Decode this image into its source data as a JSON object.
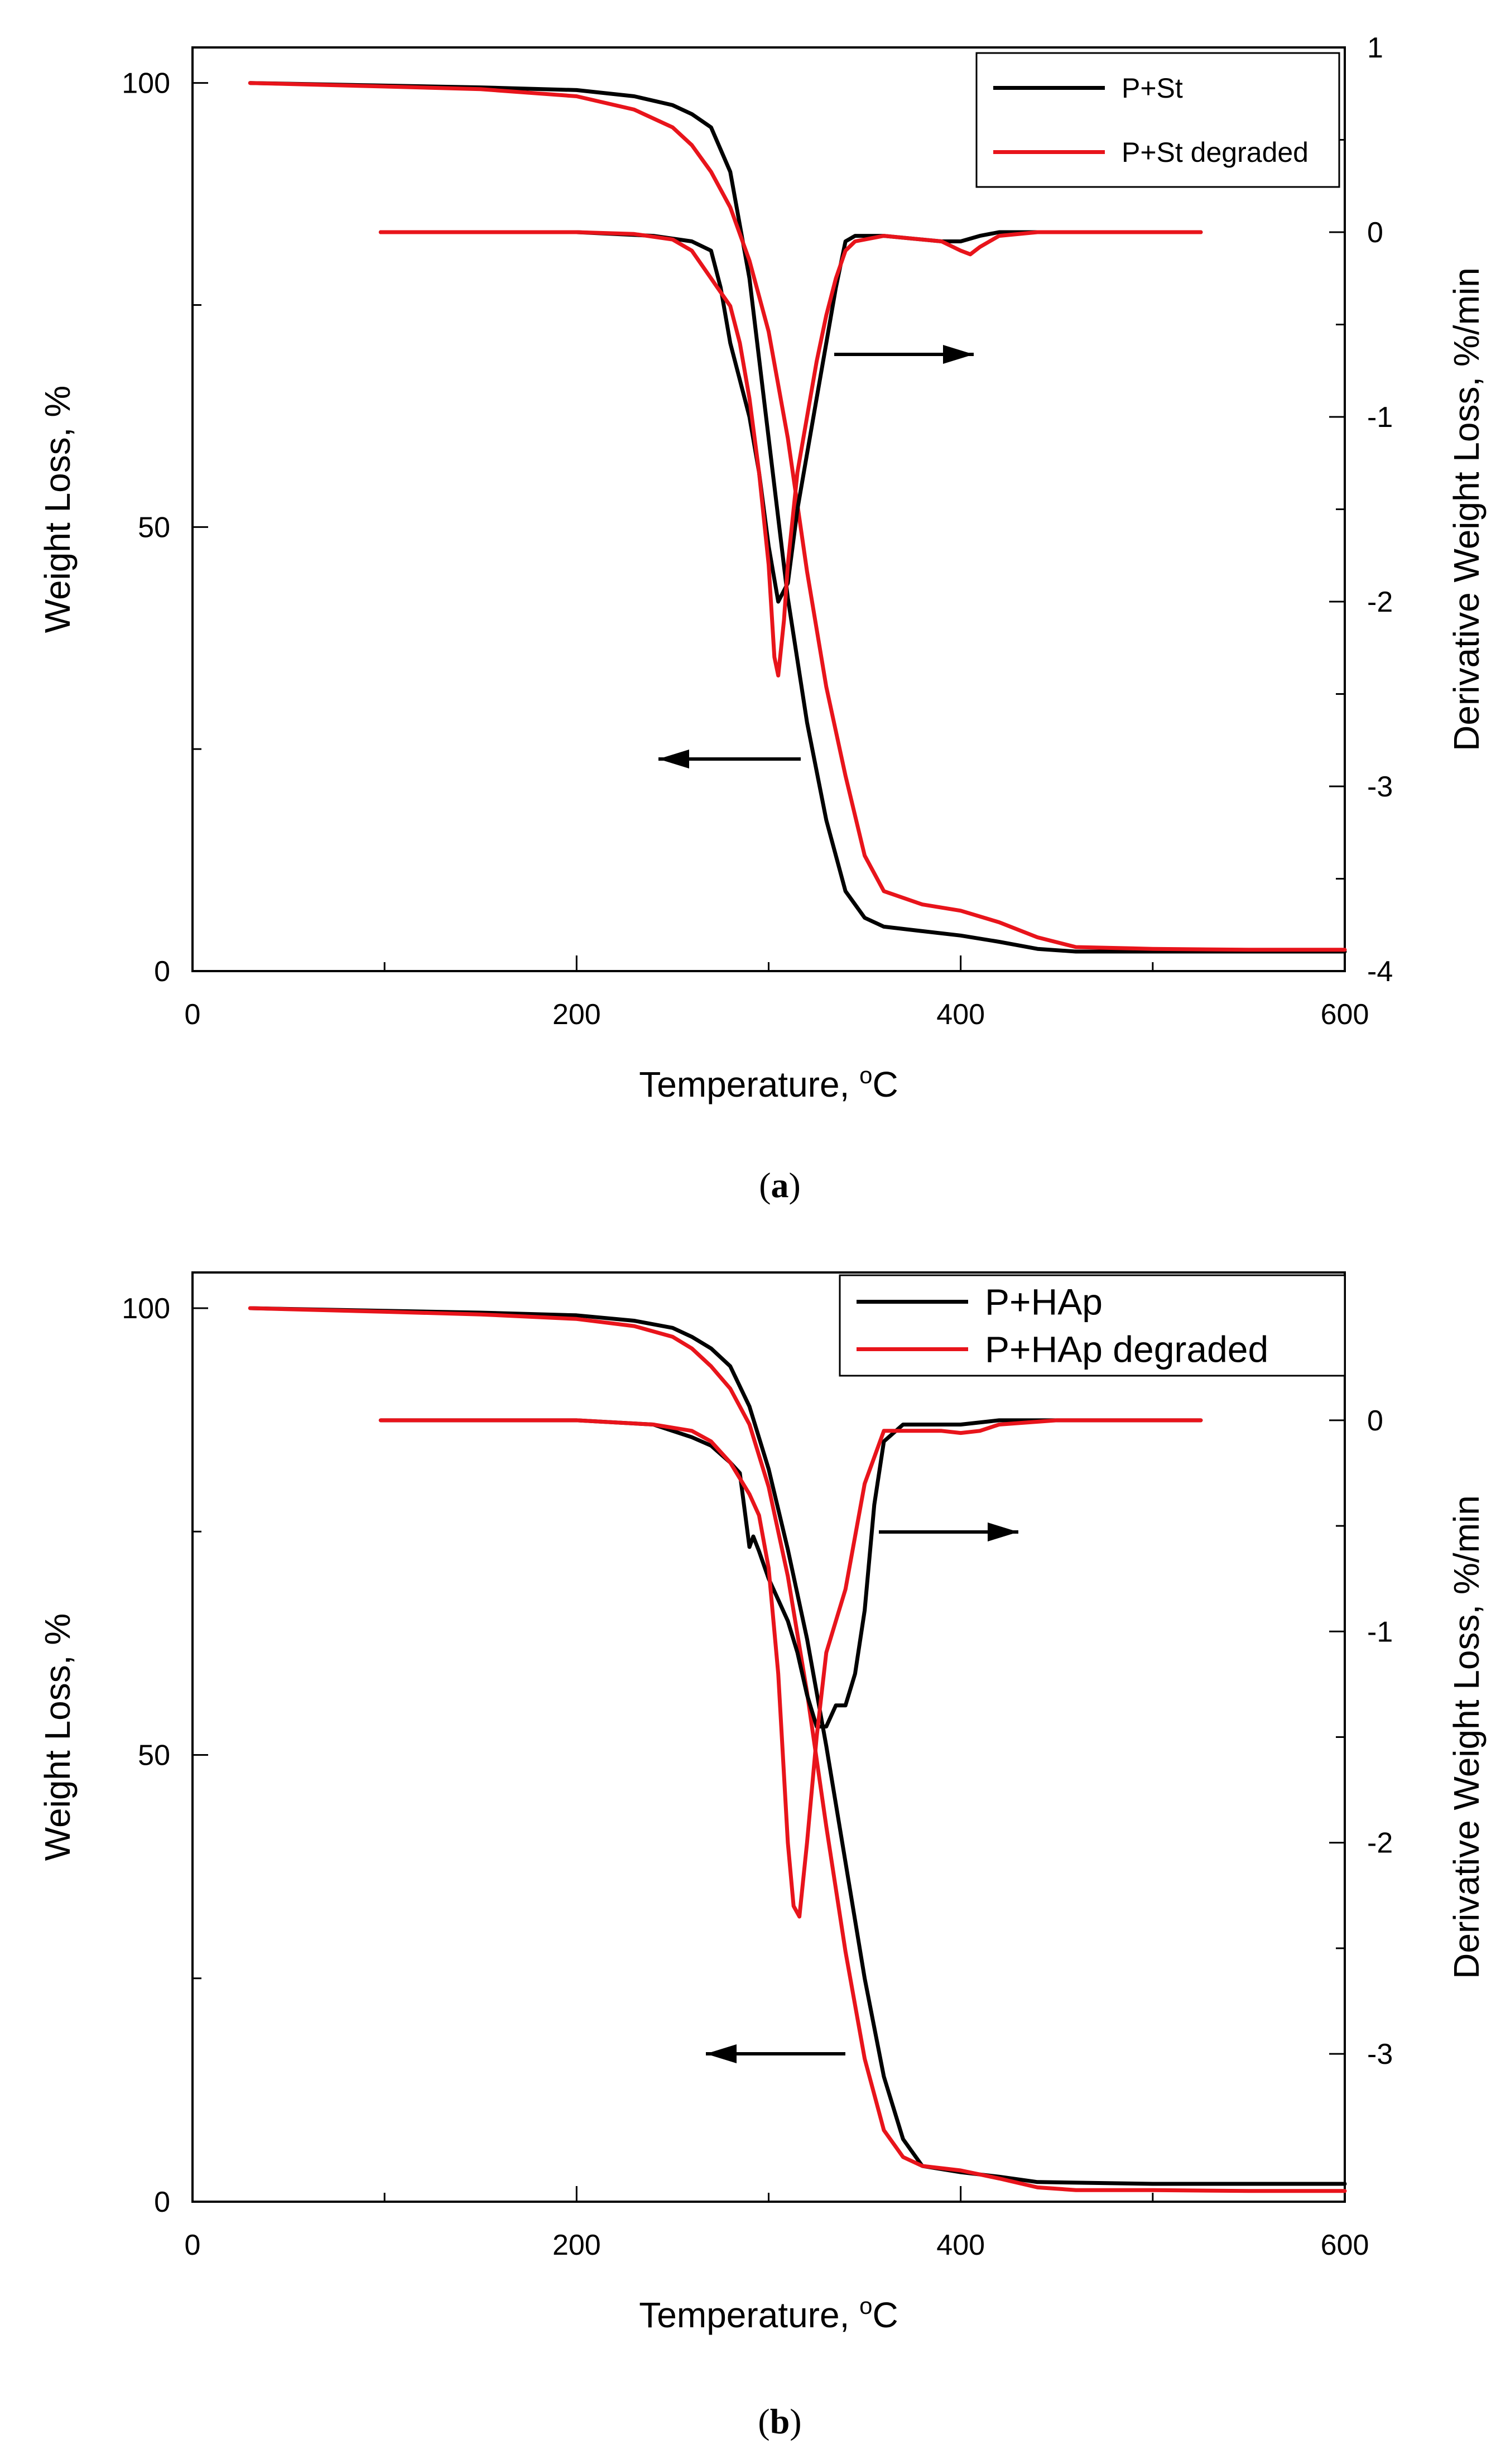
{
  "colors": {
    "black_series": "#000000",
    "red_series": "#e8141b",
    "axis": "#000000"
  },
  "panels": [
    {
      "caption_open": "(",
      "caption_letter": "a",
      "caption_close": ")"
    },
    {
      "caption_open": "(",
      "caption_letter": "b",
      "caption_close": ")"
    }
  ],
  "chart_data": [
    {
      "type": "line",
      "title": "",
      "xlabel": "Temperature, ",
      "xlabel_sup": "o",
      "xlabel_unit": "C",
      "ylabel": "Weight Loss, %",
      "y2label": "Derivative Weight Loss, %/min",
      "xlim": [
        0,
        600
      ],
      "ylim": [
        0,
        104
      ],
      "y2lim": [
        -4,
        1
      ],
      "xticks": [
        0,
        200,
        400,
        600
      ],
      "yticks": [
        0,
        50,
        100
      ],
      "y2ticks": [
        1,
        0,
        -1,
        -2,
        -3,
        -4
      ],
      "legend": [
        "P+St",
        "P+St degraded"
      ],
      "legend_position": "top-right",
      "annotations": [
        {
          "kind": "arrow",
          "direction": "right",
          "meaning": "derivative curves read on right axis"
        },
        {
          "kind": "arrow",
          "direction": "left",
          "meaning": "weight loss curves read on left axis"
        }
      ],
      "series": [
        {
          "name": "P+St",
          "axis": "left",
          "color": "black",
          "x": [
            30,
            100,
            150,
            200,
            230,
            250,
            260,
            270,
            280,
            290,
            300,
            310,
            320,
            330,
            340,
            350,
            360,
            380,
            400,
            420,
            440,
            460,
            500,
            550,
            600
          ],
          "y": [
            100,
            99.7,
            99.5,
            99.2,
            98.5,
            97.5,
            96.5,
            95,
            90,
            78,
            60,
            42,
            28,
            17,
            9,
            6,
            5,
            4.5,
            4,
            3.3,
            2.5,
            2.2,
            2.2,
            2.2,
            2.2
          ]
        },
        {
          "name": "P+St degraded",
          "axis": "left",
          "color": "red",
          "x": [
            30,
            100,
            150,
            200,
            230,
            250,
            260,
            270,
            280,
            290,
            300,
            310,
            320,
            330,
            340,
            350,
            360,
            380,
            400,
            420,
            440,
            460,
            500,
            550,
            600
          ],
          "y": [
            100,
            99.6,
            99.3,
            98.5,
            97,
            95,
            93,
            90,
            86,
            80,
            72,
            60,
            45,
            32,
            22,
            13,
            9,
            7.5,
            6.8,
            5.5,
            3.8,
            2.7,
            2.5,
            2.4,
            2.4
          ]
        },
        {
          "name": "P+St derivative",
          "axis": "right",
          "color": "black",
          "x": [
            98,
            110,
            150,
            200,
            240,
            260,
            270,
            275,
            280,
            285,
            290,
            295,
            300,
            305,
            310,
            315,
            320,
            325,
            330,
            335,
            340,
            345,
            360,
            390,
            400,
            410,
            420,
            440,
            480,
            525
          ],
          "y": [
            0,
            0,
            0,
            0,
            -0.02,
            -0.05,
            -0.1,
            -0.3,
            -0.6,
            -0.8,
            -1.0,
            -1.3,
            -1.7,
            -2.0,
            -1.9,
            -1.5,
            -1.2,
            -0.9,
            -0.6,
            -0.3,
            -0.05,
            -0.02,
            -0.02,
            -0.05,
            -0.05,
            -0.02,
            0,
            0,
            0,
            0
          ]
        },
        {
          "name": "P+St degraded derivative",
          "axis": "right",
          "color": "red",
          "x": [
            98,
            110,
            150,
            200,
            230,
            250,
            260,
            270,
            280,
            285,
            290,
            295,
            300,
            303,
            305,
            308,
            310,
            315,
            320,
            325,
            330,
            335,
            340,
            345,
            360,
            390,
            400,
            405,
            410,
            420,
            440,
            480,
            525
          ],
          "y": [
            0,
            0,
            0,
            0,
            -0.01,
            -0.04,
            -0.1,
            -0.25,
            -0.4,
            -0.6,
            -0.9,
            -1.3,
            -1.8,
            -2.3,
            -2.4,
            -2.1,
            -1.8,
            -1.3,
            -1.0,
            -0.7,
            -0.45,
            -0.25,
            -0.1,
            -0.05,
            -0.02,
            -0.05,
            -0.1,
            -0.12,
            -0.08,
            -0.02,
            0,
            0,
            0
          ]
        }
      ]
    },
    {
      "type": "line",
      "title": "",
      "xlabel": "Temperature, ",
      "xlabel_sup": "o",
      "xlabel_unit": "C",
      "ylabel": "Weight Loss, %",
      "y2label": "Derivative Weight Loss, %/min",
      "xlim": [
        0,
        600
      ],
      "ylim": [
        0,
        104
      ],
      "y2lim": [
        -3.7,
        0.7
      ],
      "xticks": [
        0,
        200,
        400,
        600
      ],
      "yticks": [
        0,
        50,
        100
      ],
      "y2ticks": [
        0,
        -1,
        -2,
        -3
      ],
      "legend": [
        "P+HAp",
        "P+HAp degraded"
      ],
      "legend_position": "top-right",
      "annotations": [
        {
          "kind": "arrow",
          "direction": "right",
          "meaning": "derivative curves read on right axis"
        },
        {
          "kind": "arrow",
          "direction": "left",
          "meaning": "weight loss curves read on left axis"
        }
      ],
      "series": [
        {
          "name": "P+HAp",
          "axis": "left",
          "color": "black",
          "x": [
            30,
            100,
            150,
            200,
            230,
            250,
            260,
            270,
            280,
            290,
            300,
            310,
            320,
            330,
            340,
            350,
            360,
            370,
            380,
            400,
            420,
            440,
            500,
            550,
            600
          ],
          "y": [
            100,
            99.7,
            99.5,
            99.2,
            98.6,
            97.8,
            96.8,
            95.5,
            93.5,
            89,
            82,
            73,
            63,
            51,
            38,
            25,
            14,
            7,
            4,
            3.3,
            2.8,
            2.2,
            2.0,
            2.0,
            2.0
          ]
        },
        {
          "name": "P+HAp degraded",
          "axis": "left",
          "color": "red",
          "x": [
            30,
            100,
            150,
            200,
            230,
            250,
            260,
            270,
            280,
            290,
            300,
            310,
            320,
            330,
            340,
            350,
            360,
            370,
            380,
            400,
            420,
            440,
            460,
            500,
            550,
            600
          ],
          "y": [
            100,
            99.6,
            99.3,
            98.8,
            98,
            96.8,
            95.5,
            93.5,
            91,
            87,
            80,
            70,
            57,
            42,
            28,
            16,
            8,
            5,
            4,
            3.5,
            2.6,
            1.6,
            1.3,
            1.3,
            1.2,
            1.2
          ]
        },
        {
          "name": "P+HAp derivative",
          "axis": "right",
          "color": "black",
          "x": [
            98,
            110,
            150,
            200,
            240,
            260,
            270,
            280,
            285,
            290,
            292,
            295,
            300,
            305,
            310,
            315,
            320,
            325,
            330,
            335,
            340,
            345,
            350,
            355,
            360,
            370,
            380,
            400,
            420,
            450,
            525
          ],
          "y": [
            0,
            0,
            0,
            0,
            -0.02,
            -0.08,
            -0.12,
            -0.2,
            -0.25,
            -0.6,
            -0.55,
            -0.62,
            -0.75,
            -0.85,
            -0.95,
            -1.1,
            -1.3,
            -1.45,
            -1.45,
            -1.35,
            -1.35,
            -1.2,
            -0.9,
            -0.4,
            -0.1,
            -0.02,
            -0.02,
            -0.02,
            0,
            0,
            0
          ]
        },
        {
          "name": "P+HAp degraded derivative",
          "axis": "right",
          "color": "red",
          "x": [
            98,
            110,
            150,
            200,
            240,
            260,
            270,
            280,
            290,
            295,
            300,
            305,
            310,
            313,
            316,
            320,
            325,
            330,
            335,
            340,
            345,
            350,
            360,
            370,
            390,
            400,
            410,
            420,
            450,
            525
          ],
          "y": [
            0,
            0,
            0,
            0,
            -0.02,
            -0.05,
            -0.1,
            -0.2,
            -0.35,
            -0.45,
            -0.7,
            -1.2,
            -2.0,
            -2.3,
            -2.35,
            -2.0,
            -1.5,
            -1.1,
            -0.95,
            -0.8,
            -0.55,
            -0.3,
            -0.05,
            -0.05,
            -0.05,
            -0.06,
            -0.05,
            -0.02,
            0,
            0
          ]
        }
      ]
    }
  ]
}
